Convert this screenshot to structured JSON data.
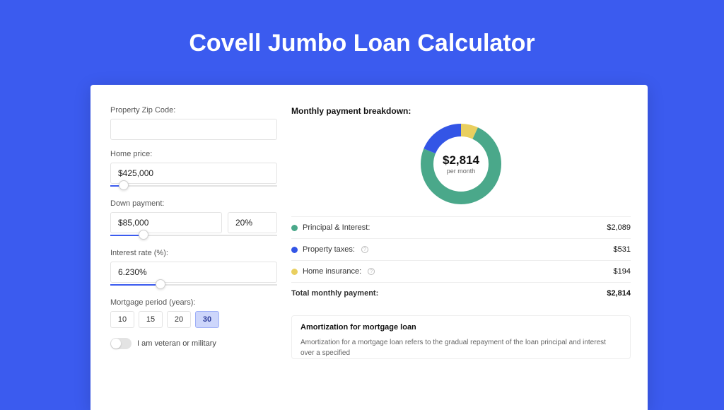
{
  "page": {
    "title": "Covell Jumbo Loan Calculator",
    "background_color": "#3b5bef",
    "card_background": "#ffffff"
  },
  "form": {
    "zip": {
      "label": "Property Zip Code:",
      "value": ""
    },
    "price": {
      "label": "Home price:",
      "value": "$425,000",
      "slider_pct": 8
    },
    "down": {
      "label": "Down payment:",
      "amount": "$85,000",
      "pct": "20%",
      "slider_pct": 20
    },
    "rate": {
      "label": "Interest rate (%):",
      "value": "6.230%",
      "slider_pct": 30
    },
    "period": {
      "label": "Mortgage period (years):",
      "options": [
        "10",
        "15",
        "20",
        "30"
      ],
      "selected": "30"
    },
    "veteran": {
      "label": "I am veteran or military",
      "checked": false
    }
  },
  "breakdown": {
    "title": "Monthly payment breakdown:",
    "donut": {
      "type": "donut",
      "center_value": "$2,814",
      "center_sub": "per month",
      "radius": 48,
      "stroke": 18,
      "background_color": "#ffffff",
      "slices": [
        {
          "key": "pi",
          "value": 2089,
          "pct": 74.2,
          "color": "#4aa88a"
        },
        {
          "key": "tax",
          "value": 531,
          "pct": 18.9,
          "color": "#3355e6"
        },
        {
          "key": "ins",
          "value": 194,
          "pct": 6.9,
          "color": "#e9cf5f"
        }
      ]
    },
    "rows": [
      {
        "key": "pi",
        "label": "Principal & Interest:",
        "value": "$2,089",
        "color": "#4aa88a",
        "has_info": false
      },
      {
        "key": "tax",
        "label": "Property taxes:",
        "value": "$531",
        "color": "#3355e6",
        "has_info": true
      },
      {
        "key": "ins",
        "label": "Home insurance:",
        "value": "$194",
        "color": "#e9cf5f",
        "has_info": true
      }
    ],
    "total": {
      "label": "Total monthly payment:",
      "value": "$2,814"
    }
  },
  "amortization": {
    "title": "Amortization for mortgage loan",
    "body": "Amortization for a mortgage loan refers to the gradual repayment of the loan principal and interest over a specified"
  },
  "style": {
    "accent": "#3b5bef",
    "input_border": "#e3e3e3",
    "text_muted": "#666666",
    "row_border": "#eeeeee"
  }
}
